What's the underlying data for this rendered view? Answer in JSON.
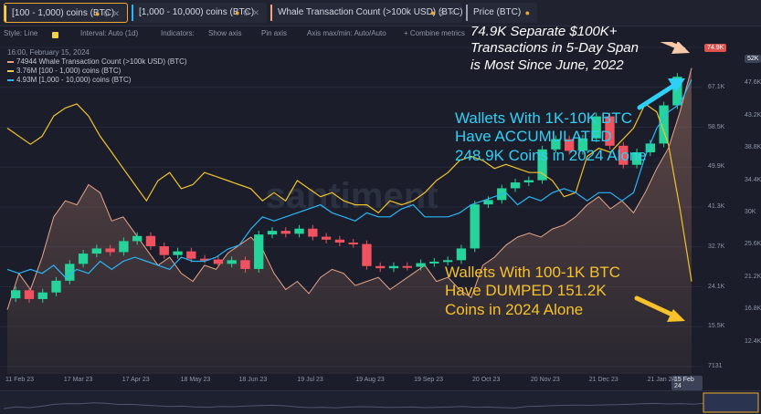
{
  "tabs": [
    {
      "label": "[100 - 1,000) coins (BTC)",
      "color": "#f0d24a"
    },
    {
      "label": "[1,000 - 10,000) coins (BTC)",
      "color": "#29b6f6"
    },
    {
      "label": "Whale Transaction Count (>100k USD) (BTC)",
      "color": "#f2a27a"
    },
    {
      "label": "Price (BTC)",
      "color": "#9aa0b4"
    }
  ],
  "toolbar": {
    "style": "Style: Line",
    "interval": "Interval: Auto (1d)",
    "indicators": "Indicators:",
    "show_axis": "Show axis",
    "pin_axis": "Pin axis",
    "axis_minmax": "Axis max/min: Auto/Auto",
    "combine": "+ Combine metrics"
  },
  "legend": {
    "date": "16:00, February 15, 2024",
    "rows": [
      {
        "value": "74944",
        "label": "Whale Transaction Count (>100k USD) (BTC)",
        "color": "#f2a27a"
      },
      {
        "value": "3.76M",
        "label": "[100 - 1,000) coins (BTC)",
        "color": "#f0d24a"
      },
      {
        "value": "4.93M",
        "label": "[1,000 - 10,000) coins (BTC)",
        "color": "#29b6f6"
      }
    ]
  },
  "watermark": "santiment",
  "annotations": {
    "white": [
      "74.9K Separate $100K+",
      "Transactions in 5-Day Span",
      "is Most Since June, 2022"
    ],
    "cyan": [
      "Wallets With 1K-10K BTC",
      "Have ACCUMULATED",
      "248.9K  Coins in 2024 Alone"
    ],
    "yellow": [
      "Wallets With 100-1K BTC",
      "Have DUMPED 151.2K",
      "Coins in 2024 Alone"
    ]
  },
  "badges": {
    "whale": "74.9K",
    "price": "52K"
  },
  "x_badge": "15 Feb 24",
  "colors": {
    "whale": "#f2a27a",
    "small": "#f0c22a",
    "large": "#29b6f6",
    "up": "#26d39b",
    "down": "#f0525f",
    "bg": "#1b1e2a"
  },
  "chart_data": {
    "type": "line",
    "x_labels": [
      "11 Feb 23",
      "17 Mar 23",
      "17 Apr 23",
      "18 May 23",
      "18 Jun 23",
      "19 Jul 23",
      "19 Aug 23",
      "19 Sep 23",
      "20 Oct 23",
      "20 Nov 23",
      "21 Dec 23",
      "21 Jan 24"
    ],
    "y_ticks": [
      "74.9K",
      "67.1K",
      "58.5K",
      "49.9K",
      "41.3K",
      "32.7K",
      "24.1K",
      "15.5K",
      "7131"
    ],
    "price_ticks": [
      "52K",
      "47.6K",
      "43.2K",
      "38.8K",
      "34.4K",
      "30K",
      "25.6K",
      "21.2K",
      "16.8K",
      "12.4K"
    ],
    "series": [
      {
        "name": "Whale Transaction Count (>100k USD) (BTC)",
        "last": 74944,
        "values": [
          15,
          24,
          20,
          28,
          38,
          42,
          41,
          46,
          44,
          37,
          38,
          34,
          30,
          26,
          28,
          24,
          22,
          26,
          25,
          29,
          31,
          33,
          30,
          24,
          20,
          22,
          19,
          23,
          25,
          24,
          21,
          22,
          23,
          20,
          22,
          24,
          26,
          22,
          23,
          20,
          18,
          26,
          28,
          31,
          33,
          34,
          33,
          35,
          36,
          38,
          41,
          43,
          40,
          42,
          39,
          44,
          50,
          55,
          64,
          74.9
        ]
      },
      {
        "name": "[100 - 1,000) coins (BTC)",
        "last": "3.76M",
        "values": [
          60,
          58,
          56,
          58,
          63,
          65,
          66,
          63,
          58,
          54,
          50,
          46,
          42,
          47,
          49,
          45,
          46,
          49,
          48,
          47,
          46,
          45,
          42,
          44,
          42,
          47,
          45,
          43,
          44,
          42,
          41,
          41,
          39,
          42,
          41,
          42,
          44,
          47,
          49,
          52,
          53,
          52,
          50,
          51,
          50,
          49,
          49,
          47,
          43,
          44,
          53,
          55,
          54,
          57,
          60,
          66,
          64,
          56,
          40,
          22
        ]
      },
      {
        "name": "[1,000 - 10,000) coins (BTC)",
        "last": "4.93M",
        "values": [
          25,
          24,
          25,
          24,
          26,
          23,
          25,
          24,
          27,
          25,
          27,
          28,
          27,
          26,
          25,
          28,
          27,
          27,
          28,
          30,
          31,
          35,
          38,
          37,
          38,
          39,
          40,
          41,
          39,
          38,
          37,
          39,
          38,
          38,
          40,
          41,
          38,
          38,
          38,
          39,
          41,
          42,
          43,
          44,
          41,
          43,
          42,
          44,
          45,
          44,
          42,
          44,
          44,
          42,
          44,
          53,
          60,
          64,
          66,
          72
        ]
      },
      {
        "name": "Price (BTC)",
        "type": "candlestick",
        "candles": [
          [
            21.8,
            22.9
          ],
          [
            22.9,
            21.7
          ],
          [
            21.7,
            22.6
          ],
          [
            22.6,
            24.2
          ],
          [
            24.2,
            26.5
          ],
          [
            26.5,
            27.9
          ],
          [
            27.9,
            28.6
          ],
          [
            28.6,
            28.1
          ],
          [
            28.1,
            29.6
          ],
          [
            29.6,
            30.3
          ],
          [
            30.3,
            28.9
          ],
          [
            28.9,
            27.7
          ],
          [
            27.7,
            28.2
          ],
          [
            28.2,
            27.2
          ],
          [
            27.2,
            27.1
          ],
          [
            27.1,
            26.5
          ],
          [
            26.5,
            27.0
          ],
          [
            27.0,
            25.8
          ],
          [
            25.8,
            30.5
          ],
          [
            30.5,
            31.0
          ],
          [
            31.0,
            30.6
          ],
          [
            30.6,
            31.3
          ],
          [
            31.3,
            30.2
          ],
          [
            30.2,
            29.8
          ],
          [
            29.8,
            29.4
          ],
          [
            29.4,
            29.2
          ],
          [
            29.2,
            26.2
          ],
          [
            26.2,
            25.9
          ],
          [
            25.9,
            26.2
          ],
          [
            26.2,
            26.1
          ],
          [
            26.1,
            26.6
          ],
          [
            26.6,
            26.8
          ],
          [
            26.8,
            27.0
          ],
          [
            27.0,
            28.6
          ],
          [
            28.6,
            34.6
          ],
          [
            34.6,
            35.2
          ],
          [
            35.2,
            36.8
          ],
          [
            36.8,
            37.6
          ],
          [
            37.6,
            37.9
          ],
          [
            37.9,
            42.1
          ],
          [
            42.1,
            43.5
          ],
          [
            43.5,
            41.9
          ],
          [
            41.9,
            43.6
          ],
          [
            43.6,
            46.6
          ],
          [
            46.6,
            42.6
          ],
          [
            42.6,
            40.0
          ],
          [
            40.0,
            41.7
          ],
          [
            41.7,
            42.9
          ],
          [
            42.9,
            48.1
          ],
          [
            48.1,
            52.0
          ]
        ]
      }
    ]
  }
}
